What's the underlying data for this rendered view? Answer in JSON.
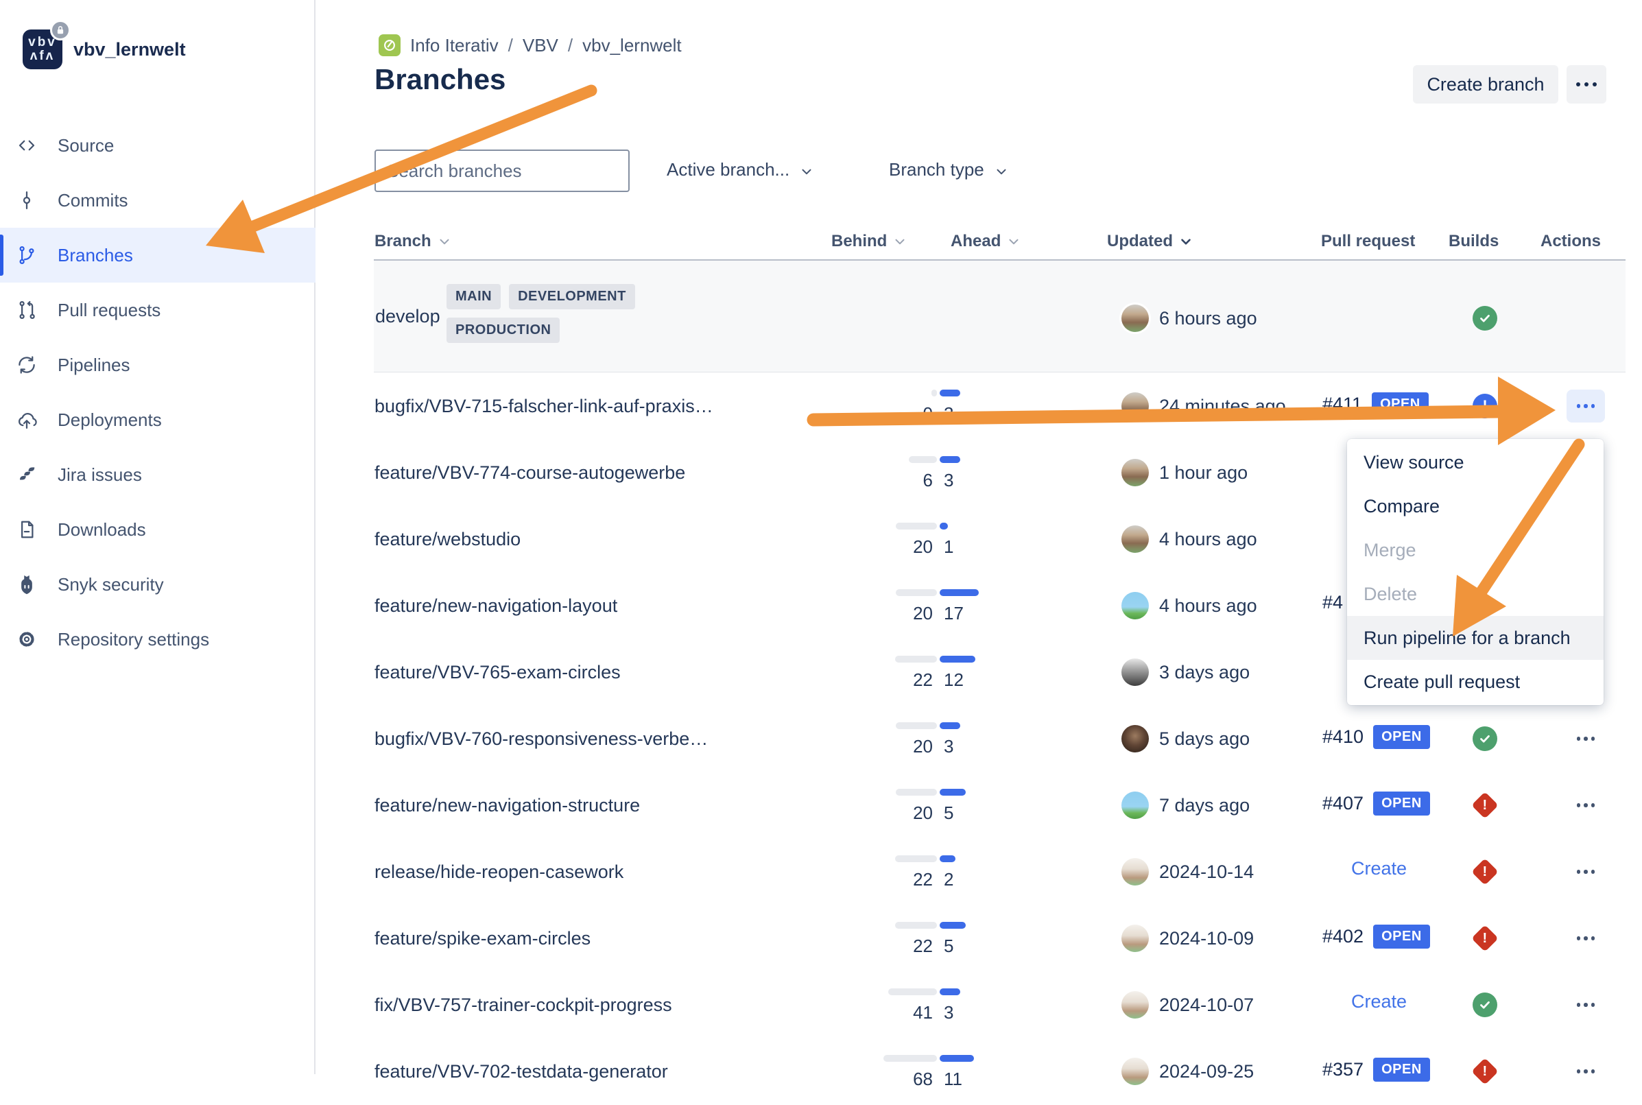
{
  "sidebar": {
    "logo_line1": "vbv",
    "logo_line2": "ʌfʌ",
    "repo_name": "vbv_lernwelt",
    "items": [
      {
        "label": "Source",
        "icon": "source-icon",
        "selected": false
      },
      {
        "label": "Commits",
        "icon": "commits-icon",
        "selected": false
      },
      {
        "label": "Branches",
        "icon": "branches-icon",
        "selected": true
      },
      {
        "label": "Pull requests",
        "icon": "pull-requests-icon",
        "selected": false
      },
      {
        "label": "Pipelines",
        "icon": "pipelines-icon",
        "selected": false
      },
      {
        "label": "Deployments",
        "icon": "deployments-icon",
        "selected": false
      },
      {
        "label": "Jira issues",
        "icon": "jira-issues-icon",
        "selected": false
      },
      {
        "label": "Downloads",
        "icon": "downloads-icon",
        "selected": false
      },
      {
        "label": "Snyk security",
        "icon": "snyk-icon",
        "selected": false
      },
      {
        "label": "Repository settings",
        "icon": "settings-icon",
        "selected": false
      }
    ]
  },
  "header": {
    "breadcrumbs": [
      "Info Iterativ",
      "VBV",
      "vbv_lernwelt"
    ],
    "title": "Branches",
    "create_branch_label": "Create branch"
  },
  "filters": {
    "search_placeholder": "Search branches",
    "active_branch_label": "Active branch...",
    "branch_type_label": "Branch type"
  },
  "table": {
    "columns": [
      "Branch",
      "Behind",
      "Ahead",
      "Updated",
      "Pull request",
      "Builds",
      "Actions"
    ],
    "main_branch": {
      "name": "develop",
      "badges": [
        "MAIN",
        "DEVELOPMENT",
        "PRODUCTION"
      ],
      "updated": "6 hours ago",
      "avatar": "photo-beard",
      "build": "success"
    },
    "rows": [
      {
        "name": "bugfix/VBV-715-falscher-link-auf-praxis…",
        "behind": 0,
        "ahead": 3,
        "updated": "24 minutes ago",
        "avatar": "photo-beard",
        "pr_number": "#411",
        "pr_status": "OPEN",
        "pr_create": null,
        "build": "inprogress",
        "actions_active": true
      },
      {
        "name": "feature/VBV-774-course-autogewerbe",
        "behind": 6,
        "ahead": 3,
        "updated": "1 hour ago",
        "avatar": "photo-beard",
        "pr_number": null,
        "pr_status": null,
        "pr_create": null,
        "build": "none",
        "actions_active": false
      },
      {
        "name": "feature/webstudio",
        "behind": 20,
        "ahead": 1,
        "updated": "4 hours ago",
        "avatar": "photo-beard",
        "pr_number": null,
        "pr_status": null,
        "pr_create": null,
        "build": "none",
        "actions_active": false
      },
      {
        "name": "feature/new-navigation-layout",
        "behind": 20,
        "ahead": 17,
        "updated": "4 hours ago",
        "avatar": "pixel-knight",
        "pr_number": "#4",
        "pr_status": null,
        "pr_create": null,
        "build": "none",
        "actions_active": false
      },
      {
        "name": "feature/VBV-765-exam-circles",
        "behind": 22,
        "ahead": 12,
        "updated": "3 days ago",
        "avatar": "photo-bw",
        "pr_number": null,
        "pr_status": null,
        "pr_create": null,
        "build": "none",
        "actions_active": false
      },
      {
        "name": "bugfix/VBV-760-responsiveness-verbe…",
        "behind": 20,
        "ahead": 3,
        "updated": "5 days ago",
        "avatar": "photo-dark",
        "pr_number": "#410",
        "pr_status": "OPEN",
        "pr_create": null,
        "build": "success",
        "actions_active": false
      },
      {
        "name": "feature/new-navigation-structure",
        "behind": 20,
        "ahead": 5,
        "updated": "7 days ago",
        "avatar": "pixel-knight",
        "pr_number": "#407",
        "pr_status": "OPEN",
        "pr_create": null,
        "build": "failed",
        "actions_active": false
      },
      {
        "name": "release/hide-reopen-casework",
        "behind": 22,
        "ahead": 2,
        "updated": "2024-10-14",
        "avatar": "photo-up",
        "pr_number": null,
        "pr_status": null,
        "pr_create": "Create",
        "build": "failed",
        "actions_active": false
      },
      {
        "name": "feature/spike-exam-circles",
        "behind": 22,
        "ahead": 5,
        "updated": "2024-10-09",
        "avatar": "photo-up",
        "pr_number": "#402",
        "pr_status": "OPEN",
        "pr_create": null,
        "build": "failed",
        "actions_active": false
      },
      {
        "name": "fix/VBV-757-trainer-cockpit-progress",
        "behind": 41,
        "ahead": 3,
        "updated": "2024-10-07",
        "avatar": "photo-up",
        "pr_number": null,
        "pr_status": null,
        "pr_create": "Create",
        "build": "success",
        "actions_active": false
      },
      {
        "name": "feature/VBV-702-testdata-generator",
        "behind": 68,
        "ahead": 11,
        "updated": "2024-09-25",
        "avatar": "photo-up",
        "pr_number": "#357",
        "pr_status": "OPEN",
        "pr_create": null,
        "build": "failed",
        "actions_active": false
      }
    ]
  },
  "context_menu": {
    "items": [
      {
        "label": "View source",
        "disabled": false,
        "highlighted": false
      },
      {
        "label": "Compare",
        "disabled": false,
        "highlighted": false
      },
      {
        "label": "Merge",
        "disabled": true,
        "highlighted": false
      },
      {
        "label": "Delete",
        "disabled": true,
        "highlighted": false
      },
      {
        "label": "Run pipeline for a branch",
        "disabled": false,
        "highlighted": true
      },
      {
        "label": "Create pull request",
        "disabled": false,
        "highlighted": false
      }
    ]
  },
  "colors": {
    "accent_blue": "#3C6BE8",
    "selected_nav_blue": "#2B5CE6",
    "success_green": "#4DA06D",
    "failed_red": "#CA3521",
    "annotation_orange": "#F0943B",
    "breadcrumb_icon_green": "#9FC651"
  }
}
